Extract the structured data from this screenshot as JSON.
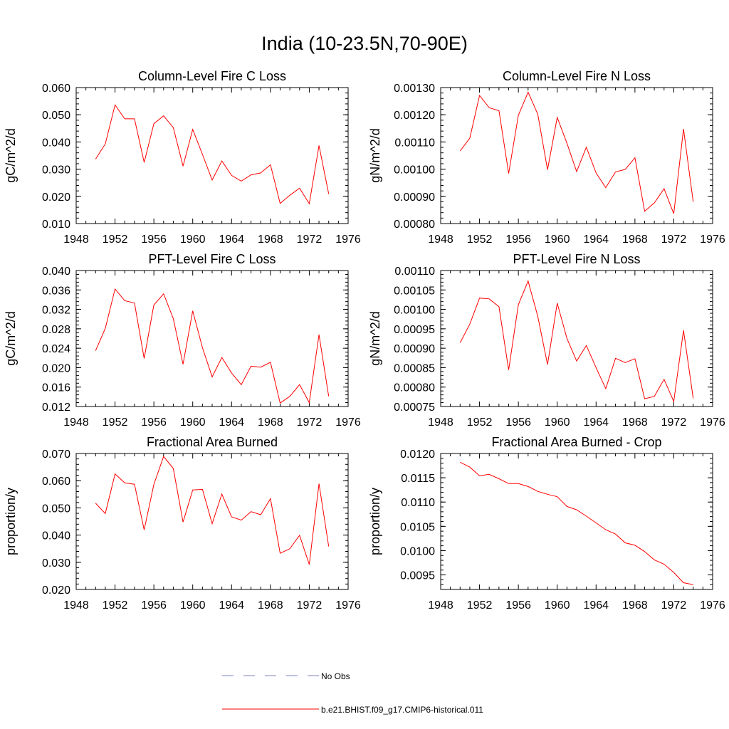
{
  "title": "India (10-23.5N,70-90E)",
  "colors": {
    "model": "#ff0000",
    "obs": "#7f7fbf",
    "axis": "#000000"
  },
  "legend": {
    "entries": [
      {
        "label": "No Obs",
        "style": "dashed",
        "color": "#7f7fbf"
      },
      {
        "label": "b.e21.BHIST.f09_g17.CMIP6-historical.011",
        "style": "solid",
        "color": "#ff0000"
      }
    ]
  },
  "chart_data": [
    {
      "type": "line",
      "title": "Column-Level Fire C Loss",
      "ylabel": "gC/m^2/d",
      "xlabel": "",
      "xlim": [
        1948,
        1976
      ],
      "ylim": [
        0.01,
        0.06
      ],
      "xticks": [
        "1948",
        "1952",
        "1956",
        "1960",
        "1964",
        "1968",
        "1972",
        "1976"
      ],
      "yticks": [
        "0.010",
        "0.020",
        "0.030",
        "0.040",
        "0.050",
        "0.060"
      ],
      "x": [
        1950,
        1951,
        1952,
        1953,
        1954,
        1955,
        1956,
        1957,
        1958,
        1959,
        1960,
        1961,
        1962,
        1963,
        1964,
        1965,
        1966,
        1967,
        1968,
        1969,
        1970,
        1971,
        1972,
        1973,
        1974
      ],
      "series": [
        {
          "values": [
            0.0337,
            0.0393,
            0.0536,
            0.0485,
            0.0485,
            0.0325,
            0.0467,
            0.0496,
            0.0453,
            0.0311,
            0.0446,
            0.0354,
            0.026,
            0.033,
            0.0277,
            0.0256,
            0.0279,
            0.0286,
            0.0316,
            0.0174,
            0.0204,
            0.023,
            0.0173,
            0.0387,
            0.0209
          ]
        }
      ]
    },
    {
      "type": "line",
      "title": "Column-Level Fire N Loss",
      "ylabel": "gN/m^2/d",
      "xlabel": "",
      "xlim": [
        1948,
        1976
      ],
      "ylim": [
        0.0008,
        0.0013
      ],
      "xticks": [
        "1948",
        "1952",
        "1956",
        "1960",
        "1964",
        "1968",
        "1972",
        "1976"
      ],
      "yticks": [
        "0.00080",
        "0.00090",
        "0.00100",
        "0.00110",
        "0.00120",
        "0.00130"
      ],
      "x": [
        1950,
        1951,
        1952,
        1953,
        1954,
        1955,
        1956,
        1957,
        1958,
        1959,
        1960,
        1961,
        1962,
        1963,
        1964,
        1965,
        1966,
        1967,
        1968,
        1969,
        1970,
        1971,
        1972,
        1973,
        1974
      ],
      "series": [
        {
          "values": [
            0.001067,
            0.001114,
            0.001271,
            0.001226,
            0.001215,
            0.000984,
            0.001198,
            0.001283,
            0.001202,
            0.000998,
            0.00119,
            0.001095,
            0.000991,
            0.001081,
            0.000986,
            0.000932,
            0.00099,
            0.000999,
            0.001042,
            0.000845,
            0.000876,
            0.000928,
            0.000836,
            0.001148,
            0.00088
          ]
        }
      ]
    },
    {
      "type": "line",
      "title": "PFT-Level Fire C Loss",
      "ylabel": "gC/m^2/d",
      "xlabel": "",
      "xlim": [
        1948,
        1976
      ],
      "ylim": [
        0.012,
        0.04
      ],
      "xticks": [
        "1948",
        "1952",
        "1956",
        "1960",
        "1964",
        "1968",
        "1972",
        "1976"
      ],
      "yticks": [
        "0.012",
        "0.016",
        "0.020",
        "0.024",
        "0.028",
        "0.032",
        "0.036",
        "0.040"
      ],
      "x": [
        1950,
        1951,
        1952,
        1953,
        1954,
        1955,
        1956,
        1957,
        1958,
        1959,
        1960,
        1961,
        1962,
        1963,
        1964,
        1965,
        1966,
        1967,
        1968,
        1969,
        1970,
        1971,
        1972,
        1973,
        1974
      ],
      "series": [
        {
          "values": [
            0.0235,
            0.0281,
            0.0362,
            0.0338,
            0.0333,
            0.0219,
            0.0329,
            0.0352,
            0.0301,
            0.0207,
            0.0317,
            0.0241,
            0.0181,
            0.0221,
            0.0189,
            0.0165,
            0.0203,
            0.0201,
            0.0211,
            0.0127,
            0.0141,
            0.0165,
            0.0128,
            0.0268,
            0.0141
          ]
        }
      ]
    },
    {
      "type": "line",
      "title": "PFT-Level Fire N Loss",
      "ylabel": "gN/m^2/d",
      "xlabel": "",
      "xlim": [
        1948,
        1976
      ],
      "ylim": [
        0.00075,
        0.0011
      ],
      "xticks": [
        "1948",
        "1952",
        "1956",
        "1960",
        "1964",
        "1968",
        "1972",
        "1976"
      ],
      "yticks": [
        "0.00075",
        "0.00080",
        "0.00085",
        "0.00090",
        "0.00095",
        "0.00100",
        "0.00105",
        "0.00110"
      ],
      "x": [
        1950,
        1951,
        1952,
        1953,
        1954,
        1955,
        1956,
        1957,
        1958,
        1959,
        1960,
        1961,
        1962,
        1963,
        1964,
        1965,
        1966,
        1967,
        1968,
        1969,
        1970,
        1971,
        1972,
        1973,
        1974
      ],
      "series": [
        {
          "values": [
            0.000914,
            0.000962,
            0.001029,
            0.001027,
            0.001007,
            0.000844,
            0.001012,
            0.001073,
            0.000982,
            0.000858,
            0.001016,
            0.000925,
            0.000867,
            0.000907,
            0.00085,
            0.000796,
            0.000874,
            0.000863,
            0.000873,
            0.00077,
            0.000776,
            0.00082,
            0.000763,
            0.000946,
            0.000771
          ]
        }
      ]
    },
    {
      "type": "line",
      "title": "Fractional Area Burned",
      "ylabel": "proportion/y",
      "xlabel": "",
      "xlim": [
        1948,
        1976
      ],
      "ylim": [
        0.02,
        0.07
      ],
      "xticks": [
        "1948",
        "1952",
        "1956",
        "1960",
        "1964",
        "1968",
        "1972",
        "1976"
      ],
      "yticks": [
        "0.020",
        "0.030",
        "0.040",
        "0.050",
        "0.060",
        "0.070"
      ],
      "x": [
        1950,
        1951,
        1952,
        1953,
        1954,
        1955,
        1956,
        1957,
        1958,
        1959,
        1960,
        1961,
        1962,
        1963,
        1964,
        1965,
        1966,
        1967,
        1968,
        1969,
        1970,
        1971,
        1972,
        1973,
        1974
      ],
      "series": [
        {
          "values": [
            0.0517,
            0.0479,
            0.0625,
            0.0592,
            0.0587,
            0.0419,
            0.0586,
            0.0689,
            0.0645,
            0.0448,
            0.0566,
            0.0568,
            0.0442,
            0.0551,
            0.0467,
            0.0455,
            0.0486,
            0.0475,
            0.0534,
            0.0333,
            0.035,
            0.0399,
            0.0292,
            0.0589,
            0.0358
          ]
        }
      ]
    },
    {
      "type": "line",
      "title": "Fractional Area Burned - Crop",
      "ylabel": "proportion/y",
      "xlabel": "",
      "xlim": [
        1948,
        1976
      ],
      "ylim": [
        0.0092,
        0.012
      ],
      "xticks": [
        "1948",
        "1952",
        "1956",
        "1960",
        "1964",
        "1968",
        "1972",
        "1976"
      ],
      "yticks": [
        "0.0095",
        "0.0100",
        "0.0105",
        "0.0110",
        "0.0115",
        "0.0120"
      ],
      "x": [
        1950,
        1951,
        1952,
        1953,
        1954,
        1955,
        1956,
        1957,
        1958,
        1959,
        1960,
        1961,
        1962,
        1963,
        1964,
        1965,
        1966,
        1967,
        1968,
        1969,
        1970,
        1971,
        1972,
        1973,
        1974
      ],
      "series": [
        {
          "values": [
            0.01182,
            0.01172,
            0.01154,
            0.01157,
            0.01148,
            0.01138,
            0.01138,
            0.01132,
            0.01122,
            0.01116,
            0.01111,
            0.01091,
            0.01084,
            0.01071,
            0.01057,
            0.01043,
            0.01034,
            0.01016,
            0.01011,
            0.00998,
            0.00981,
            0.00972,
            0.00955,
            0.00934,
            0.0093
          ]
        }
      ]
    }
  ]
}
